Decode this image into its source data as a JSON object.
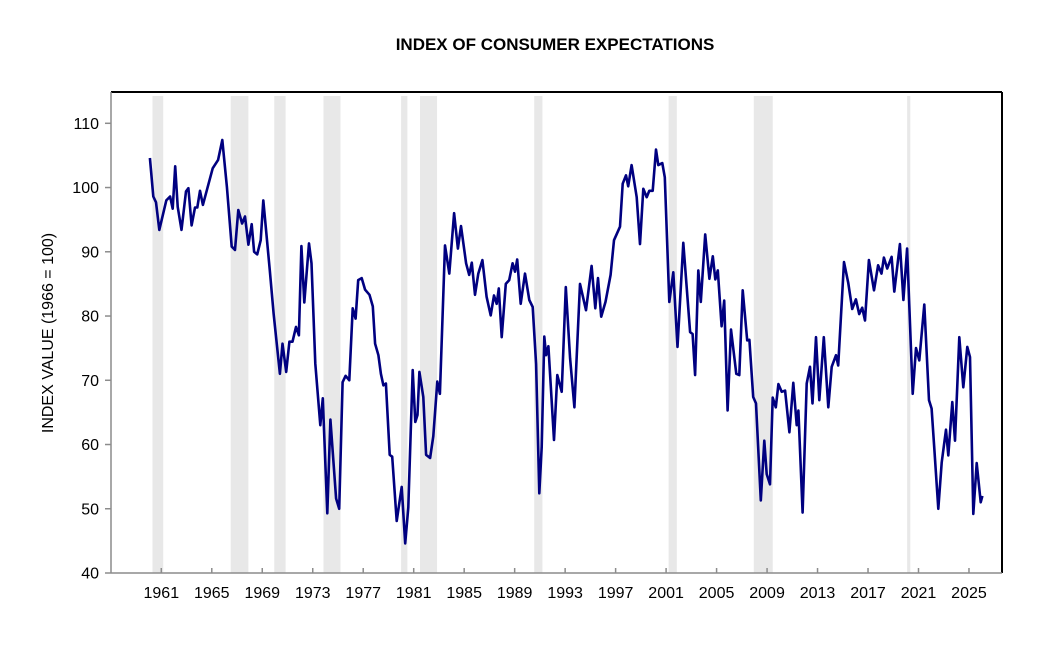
{
  "chart_data": {
    "type": "line",
    "title": "INDEX OF CONSUMER EXPECTATIONS",
    "xlabel": "",
    "ylabel": "INDEX VALUE (1966 = 100)",
    "xlim": [
      1957.0,
      2027.6
    ],
    "ylim": [
      40,
      115
    ],
    "yticks": [
      40,
      50,
      60,
      70,
      80,
      90,
      100,
      110
    ],
    "xticks": [
      1961,
      1965,
      1969,
      1973,
      1977,
      1981,
      1985,
      1989,
      1993,
      1997,
      2001,
      2005,
      2009,
      2013,
      2017,
      2021,
      2025
    ],
    "grid": false,
    "colors": {
      "line": "#000080",
      "recession": "#e8e8e8",
      "axis_main": "#000000",
      "axis_minor": "#8c8c8c"
    },
    "recessions": [
      [
        1960.3,
        1961.15
      ],
      [
        1966.5,
        1967.9
      ],
      [
        1969.95,
        1970.85
      ],
      [
        1973.85,
        1975.2
      ],
      [
        1980.0,
        1980.5
      ],
      [
        1981.5,
        1982.85
      ],
      [
        1990.55,
        1991.2
      ],
      [
        2001.2,
        2001.85
      ],
      [
        2007.95,
        2009.45
      ],
      [
        2020.1,
        2020.35
      ]
    ],
    "series": [
      {
        "name": "Index of Consumer Expectations",
        "points": [
          [
            1960.1,
            104.6
          ],
          [
            1960.37,
            98.6
          ],
          [
            1960.58,
            97.7
          ],
          [
            1960.84,
            93.4
          ],
          [
            1961.4,
            98.0
          ],
          [
            1961.7,
            98.6
          ],
          [
            1961.9,
            96.7
          ],
          [
            1962.1,
            103.3
          ],
          [
            1962.3,
            97
          ],
          [
            1962.6,
            93.4
          ],
          [
            1962.96,
            99.4
          ],
          [
            1963.15,
            99.9
          ],
          [
            1963.4,
            94.1
          ],
          [
            1963.67,
            96.9
          ],
          [
            1963.85,
            96.9
          ],
          [
            1964.07,
            99.5
          ],
          [
            1964.3,
            97.3
          ],
          [
            1965.07,
            103
          ],
          [
            1965.5,
            104.3
          ],
          [
            1965.83,
            107.4
          ],
          [
            1966.2,
            100.1
          ],
          [
            1966.58,
            90.8
          ],
          [
            1966.84,
            90.3
          ],
          [
            1967.1,
            96.5
          ],
          [
            1967.4,
            94.4
          ],
          [
            1967.63,
            95.5
          ],
          [
            1967.9,
            91.1
          ],
          [
            1968.16,
            94.3
          ],
          [
            1968.35,
            90.0
          ],
          [
            1968.6,
            89.6
          ],
          [
            1968.88,
            91.8
          ],
          [
            1969.08,
            98.0
          ],
          [
            1969.6,
            87.1
          ],
          [
            1969.9,
            80.4
          ],
          [
            1970.4,
            71.0
          ],
          [
            1970.6,
            75.7
          ],
          [
            1970.9,
            71.3
          ],
          [
            1971.15,
            76
          ],
          [
            1971.4,
            76
          ],
          [
            1971.67,
            78.3
          ],
          [
            1971.9,
            77
          ],
          [
            1972.1,
            90.9
          ],
          [
            1972.33,
            82.1
          ],
          [
            1972.7,
            91.3
          ],
          [
            1972.9,
            88.2
          ],
          [
            1973.2,
            72.6
          ],
          [
            1973.6,
            63
          ],
          [
            1973.8,
            67.2
          ],
          [
            1974.15,
            49.3
          ],
          [
            1974.4,
            63.9
          ],
          [
            1974.85,
            51.6
          ],
          [
            1975.1,
            50
          ],
          [
            1975.37,
            69.7
          ],
          [
            1975.6,
            70.7
          ],
          [
            1975.9,
            70
          ],
          [
            1976.17,
            81.2
          ],
          [
            1976.4,
            79.6
          ],
          [
            1976.6,
            85.6
          ],
          [
            1976.88,
            85.9
          ],
          [
            1977.15,
            84.1
          ],
          [
            1977.5,
            83.3
          ],
          [
            1977.76,
            81.5
          ],
          [
            1977.94,
            75.7
          ],
          [
            1978.2,
            73.9
          ],
          [
            1978.4,
            71
          ],
          [
            1978.6,
            69.2
          ],
          [
            1978.8,
            69.5
          ],
          [
            1979.1,
            58.4
          ],
          [
            1979.3,
            58.1
          ],
          [
            1979.65,
            48.1
          ],
          [
            1980.05,
            53.4
          ],
          [
            1980.33,
            44.6
          ],
          [
            1980.57,
            50.2
          ],
          [
            1980.92,
            71.6
          ],
          [
            1981.13,
            63.5
          ],
          [
            1981.3,
            64.6
          ],
          [
            1981.45,
            71.3
          ],
          [
            1981.76,
            67.4
          ],
          [
            1981.98,
            58.4
          ],
          [
            1982.3,
            57.9
          ],
          [
            1982.55,
            61.3
          ],
          [
            1982.87,
            69.8
          ],
          [
            1983.08,
            67.9
          ],
          [
            1983.48,
            91.0
          ],
          [
            1983.82,
            86.6
          ],
          [
            1984.2,
            96
          ],
          [
            1984.5,
            90.5
          ],
          [
            1984.75,
            94.0
          ],
          [
            1985.15,
            88.2
          ],
          [
            1985.4,
            86.4
          ],
          [
            1985.6,
            88.3
          ],
          [
            1985.86,
            83.3
          ],
          [
            1986.12,
            86.6
          ],
          [
            1986.44,
            88.7
          ],
          [
            1986.78,
            83
          ],
          [
            1987.1,
            80.1
          ],
          [
            1987.36,
            83.2
          ],
          [
            1987.58,
            81.9
          ],
          [
            1987.74,
            84.3
          ],
          [
            1987.97,
            76.7
          ],
          [
            1988.3,
            85
          ],
          [
            1988.57,
            85.6
          ],
          [
            1988.84,
            88.2
          ],
          [
            1989.03,
            86.9
          ],
          [
            1989.2,
            88.8
          ],
          [
            1989.48,
            81.9
          ],
          [
            1989.82,
            86.6
          ],
          [
            1990.16,
            82.5
          ],
          [
            1990.43,
            81.4
          ],
          [
            1990.7,
            72.5
          ],
          [
            1990.95,
            52.4
          ],
          [
            1991.14,
            59.6
          ],
          [
            1991.35,
            76.8
          ],
          [
            1991.49,
            73.9
          ],
          [
            1991.67,
            75.3
          ],
          [
            1992.12,
            60.7
          ],
          [
            1992.38,
            70.8
          ],
          [
            1992.73,
            68.2
          ],
          [
            1993.05,
            84.5
          ],
          [
            1993.39,
            73.4
          ],
          [
            1993.73,
            65.8
          ],
          [
            1994.18,
            85
          ],
          [
            1994.65,
            80.9
          ],
          [
            1995.1,
            87.8
          ],
          [
            1995.39,
            81.2
          ],
          [
            1995.6,
            85.9
          ],
          [
            1995.86,
            79.9
          ],
          [
            1996.2,
            82.2
          ],
          [
            1996.6,
            86.4
          ],
          [
            1996.87,
            91.8
          ],
          [
            1997.35,
            93.9
          ],
          [
            1997.56,
            100.6
          ],
          [
            1997.82,
            101.9
          ],
          [
            1998.0,
            100.2
          ],
          [
            1998.27,
            103.5
          ],
          [
            1998.67,
            98.5
          ],
          [
            1998.93,
            91.2
          ],
          [
            1999.19,
            99.8
          ],
          [
            1999.46,
            98.5
          ],
          [
            1999.67,
            99.5
          ],
          [
            1999.94,
            99.5
          ],
          [
            2000.2,
            105.9
          ],
          [
            2000.38,
            103.5
          ],
          [
            2000.7,
            103.8
          ],
          [
            2000.9,
            101.6
          ],
          [
            2001.25,
            82.2
          ],
          [
            2001.57,
            86.8
          ],
          [
            2001.9,
            75.2
          ],
          [
            2002.36,
            91.4
          ],
          [
            2002.9,
            77.5
          ],
          [
            2003.1,
            77.2
          ],
          [
            2003.3,
            70.8
          ],
          [
            2003.55,
            87.1
          ],
          [
            2003.75,
            82.2
          ],
          [
            2004.1,
            92.7
          ],
          [
            2004.43,
            85.8
          ],
          [
            2004.7,
            89.3
          ],
          [
            2004.9,
            85.7
          ],
          [
            2005.1,
            87.1
          ],
          [
            2005.4,
            78.4
          ],
          [
            2005.6,
            82.4
          ],
          [
            2005.87,
            65.3
          ],
          [
            2006.14,
            77.9
          ],
          [
            2006.56,
            71
          ],
          [
            2006.8,
            70.8
          ],
          [
            2007.07,
            84
          ],
          [
            2007.43,
            76.2
          ],
          [
            2007.6,
            76.3
          ],
          [
            2007.9,
            67.4
          ],
          [
            2008.12,
            66.4
          ],
          [
            2008.5,
            51.3
          ],
          [
            2008.78,
            60.6
          ],
          [
            2008.97,
            55.4
          ],
          [
            2009.23,
            53.8
          ],
          [
            2009.45,
            67.3
          ],
          [
            2009.69,
            65.8
          ],
          [
            2009.9,
            69.4
          ],
          [
            2010.16,
            68.2
          ],
          [
            2010.43,
            68.4
          ],
          [
            2010.77,
            61.9
          ],
          [
            2011.08,
            69.6
          ],
          [
            2011.35,
            63
          ],
          [
            2011.48,
            65.3
          ],
          [
            2011.82,
            49.4
          ],
          [
            2012.14,
            69.5
          ],
          [
            2012.4,
            72.1
          ],
          [
            2012.6,
            66.4
          ],
          [
            2012.88,
            76.7
          ],
          [
            2013.14,
            66.9
          ],
          [
            2013.5,
            76.7
          ],
          [
            2013.85,
            65.8
          ],
          [
            2014.12,
            72.1
          ],
          [
            2014.46,
            73.9
          ],
          [
            2014.64,
            72.3
          ],
          [
            2015.1,
            88.4
          ],
          [
            2015.43,
            85.2
          ],
          [
            2015.75,
            81.1
          ],
          [
            2016.04,
            82.6
          ],
          [
            2016.3,
            80.3
          ],
          [
            2016.54,
            81.3
          ],
          [
            2016.76,
            79.3
          ],
          [
            2017.07,
            88.7
          ],
          [
            2017.47,
            84
          ],
          [
            2017.8,
            87.9
          ],
          [
            2018.07,
            86.6
          ],
          [
            2018.26,
            89.1
          ],
          [
            2018.52,
            87.4
          ],
          [
            2018.87,
            89.2
          ],
          [
            2019.08,
            83.8
          ],
          [
            2019.53,
            91.2
          ],
          [
            2019.8,
            82.5
          ],
          [
            2020.1,
            90.5
          ],
          [
            2020.54,
            67.9
          ],
          [
            2020.8,
            75
          ],
          [
            2021.06,
            73.1
          ],
          [
            2021.46,
            81.8
          ],
          [
            2021.83,
            66.9
          ],
          [
            2022.04,
            65.6
          ],
          [
            2022.25,
            59.4
          ],
          [
            2022.57,
            50
          ],
          [
            2022.84,
            57.2
          ],
          [
            2023.18,
            62.3
          ],
          [
            2023.36,
            58.3
          ],
          [
            2023.68,
            66.6
          ],
          [
            2023.89,
            60.6
          ],
          [
            2024.23,
            76.7
          ],
          [
            2024.55,
            68.9
          ],
          [
            2024.87,
            75.2
          ],
          [
            2025.08,
            73.6
          ],
          [
            2025.34,
            49.2
          ],
          [
            2025.61,
            57.1
          ],
          [
            2025.93,
            51
          ],
          [
            2026.06,
            52
          ]
        ]
      }
    ]
  }
}
